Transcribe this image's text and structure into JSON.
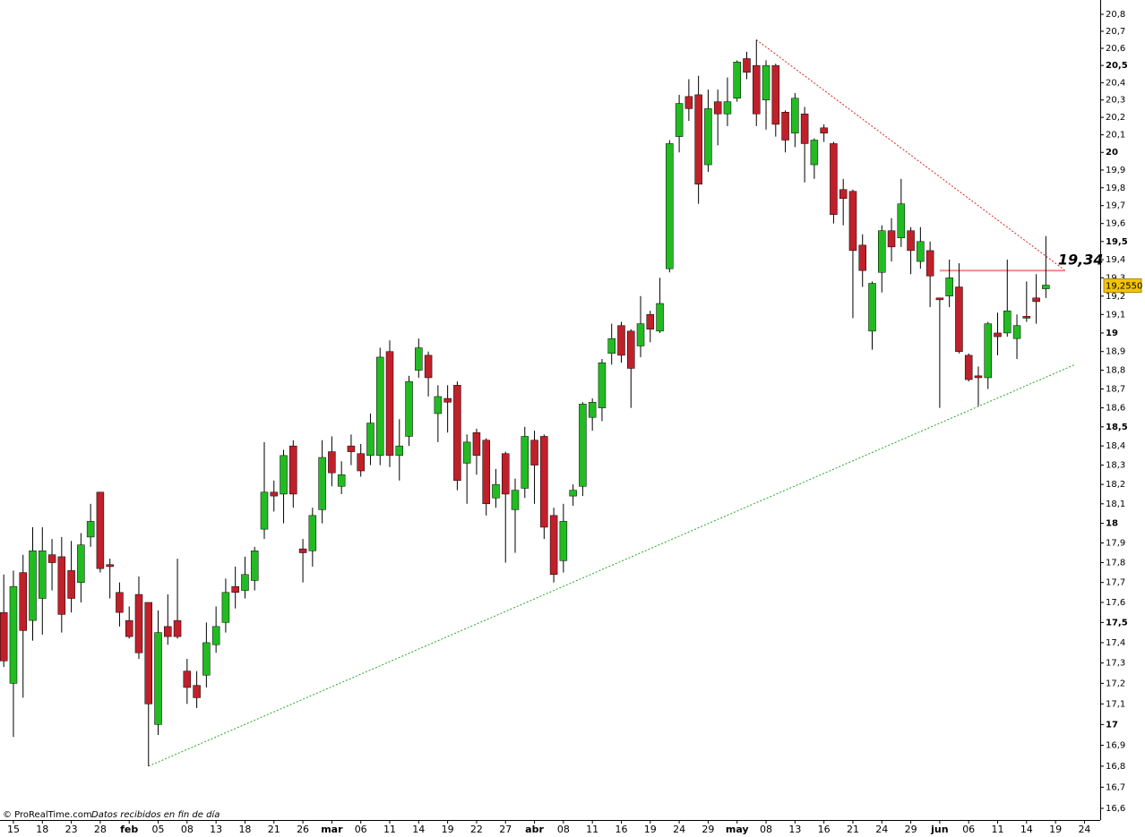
{
  "chart_data": {
    "type": "candlestick",
    "log_scale": true,
    "ylim": [
      16.6,
      20.8
    ],
    "yticks": [
      {
        "value": 16.6,
        "label": "16,6"
      },
      {
        "value": 16.7,
        "label": "16,7"
      },
      {
        "value": 16.8,
        "label": "16,8"
      },
      {
        "value": 16.9,
        "label": "16,9"
      },
      {
        "value": 17,
        "label": "17"
      },
      {
        "value": 17.1,
        "label": "17,1"
      },
      {
        "value": 17.2,
        "label": "17,2"
      },
      {
        "value": 17.3,
        "label": "17,3"
      },
      {
        "value": 17.4,
        "label": "17,4"
      },
      {
        "value": 17.5,
        "label": "17,5"
      },
      {
        "value": 17.6,
        "label": "17,6"
      },
      {
        "value": 17.7,
        "label": "17,7"
      },
      {
        "value": 17.8,
        "label": "17,8"
      },
      {
        "value": 17.9,
        "label": "17,9"
      },
      {
        "value": 18,
        "label": "18"
      },
      {
        "value": 18.1,
        "label": "18,1"
      },
      {
        "value": 18.2,
        "label": "18,2"
      },
      {
        "value": 18.3,
        "label": "18,3"
      },
      {
        "value": 18.4,
        "label": "18,4"
      },
      {
        "value": 18.5,
        "label": "18,5"
      },
      {
        "value": 18.6,
        "label": "18,6"
      },
      {
        "value": 18.7,
        "label": "18,7"
      },
      {
        "value": 18.8,
        "label": "18,8"
      },
      {
        "value": 18.9,
        "label": "18,9"
      },
      {
        "value": 19,
        "label": "19"
      },
      {
        "value": 19.1,
        "label": "19,1"
      },
      {
        "value": 19.2,
        "label": "19,2"
      },
      {
        "value": 19.3,
        "label": "19,3"
      },
      {
        "value": 19.4,
        "label": "19,4"
      },
      {
        "value": 19.5,
        "label": "19,5"
      },
      {
        "value": 19.6,
        "label": "19,6"
      },
      {
        "value": 19.7,
        "label": "19,7"
      },
      {
        "value": 19.8,
        "label": "19,8"
      },
      {
        "value": 19.9,
        "label": "19,9"
      },
      {
        "value": 20,
        "label": "20"
      },
      {
        "value": 20.1,
        "label": "20,1"
      },
      {
        "value": 20.2,
        "label": "20,2"
      },
      {
        "value": 20.3,
        "label": "20,3"
      },
      {
        "value": 20.4,
        "label": "20,4"
      },
      {
        "value": 20.5,
        "label": "20,5"
      },
      {
        "value": 20.6,
        "label": "20,6"
      },
      {
        "value": 20.7,
        "label": "20,7"
      },
      {
        "value": 20.8,
        "label": "20,8"
      }
    ],
    "categories": [
      null,
      "15",
      null,
      null,
      "18",
      null,
      null,
      "23",
      null,
      null,
      "28",
      null,
      null,
      "feb",
      null,
      null,
      "05",
      null,
      null,
      "08",
      null,
      null,
      "13",
      null,
      null,
      "18",
      null,
      null,
      "21",
      null,
      null,
      "26",
      null,
      null,
      "mar",
      null,
      null,
      "06",
      null,
      null,
      "11",
      null,
      null,
      "14",
      null,
      null,
      "19",
      null,
      null,
      "22",
      null,
      null,
      "27",
      null,
      null,
      "abr",
      null,
      null,
      "08",
      null,
      null,
      "11",
      null,
      null,
      "16",
      null,
      null,
      "19",
      null,
      null,
      "24",
      null,
      null,
      "29",
      null,
      null,
      "may",
      null,
      null,
      "08",
      null,
      null,
      "13",
      null,
      null,
      "16",
      null,
      null,
      "21",
      null,
      null,
      "24",
      null,
      null,
      "29",
      null,
      null,
      "jun",
      null,
      null,
      "06",
      null,
      null,
      "11",
      null,
      null,
      "14",
      null,
      null,
      "19",
      null,
      null,
      "24"
    ],
    "up_color": "#22bb22",
    "down_color": "#c0202a",
    "open": [
      17.55,
      17.2,
      17.75,
      17.51,
      17.62,
      17.84,
      17.83,
      17.76,
      17.7,
      17.93,
      18.16,
      17.79,
      17.65,
      17.51,
      17.64,
      17.6,
      17.0,
      17.48,
      17.51,
      17.26,
      17.19,
      17.24,
      17.39,
      17.5,
      17.68,
      17.66,
      17.71,
      17.97,
      18.16,
      18.15,
      18.4,
      17.87,
      17.86,
      18.07,
      18.37,
      18.19,
      18.4,
      18.36,
      18.35,
      18.35,
      18.9,
      18.35,
      18.45,
      18.8,
      18.88,
      18.57,
      18.65,
      18.72,
      18.31,
      18.47,
      18.43,
      18.13,
      18.36,
      18.07,
      18.18,
      18.43,
      18.45,
      18.04,
      17.81,
      18.14,
      18.19,
      18.55,
      18.6,
      18.89,
      19.04,
      19.01,
      18.93,
      19.1,
      19.01,
      19.35,
      20.09,
      20.32,
      20.33,
      19.93,
      20.29,
      20.22,
      20.31,
      20.54,
      20.5,
      20.3,
      20.5,
      20.23,
      20.11,
      20.22,
      19.93,
      20.14,
      20.05,
      19.79,
      19.78,
      19.48,
      19.01,
      19.33,
      19.56,
      19.52,
      19.56,
      19.39,
      19.45,
      19.19,
      19.2,
      19.25,
      18.88,
      18.77,
      18.76,
      19.0,
      19.0,
      18.97,
      19.09,
      19.19,
      19.24,
      null,
      null,
      null,
      null
    ],
    "high": [
      17.74,
      17.76,
      17.84,
      17.98,
      17.98,
      17.92,
      17.93,
      17.91,
      17.95,
      18.1,
      18.16,
      17.82,
      17.7,
      17.58,
      17.73,
      17.6,
      17.56,
      17.64,
      17.82,
      17.32,
      17.26,
      17.5,
      17.58,
      17.72,
      17.78,
      17.83,
      17.88,
      18.42,
      18.22,
      18.38,
      18.43,
      17.92,
      18.08,
      18.43,
      18.45,
      18.32,
      18.46,
      18.41,
      18.57,
      18.92,
      18.96,
      18.54,
      18.77,
      18.97,
      18.9,
      18.72,
      18.72,
      18.74,
      18.46,
      18.49,
      18.44,
      18.28,
      18.37,
      18.23,
      18.5,
      18.48,
      18.46,
      18.08,
      18.1,
      18.2,
      18.63,
      18.65,
      18.86,
      19.05,
      19.06,
      19.02,
      19.2,
      19.12,
      19.3,
      20.07,
      20.33,
      20.42,
      20.44,
      20.36,
      20.36,
      20.43,
      20.53,
      20.58,
      20.65,
      20.53,
      20.51,
      20.24,
      20.34,
      20.26,
      20.08,
      20.16,
      20.06,
      19.85,
      19.79,
      19.54,
      19.28,
      19.59,
      19.63,
      19.85,
      19.58,
      19.58,
      19.5,
      19.19,
      19.4,
      19.38,
      18.89,
      18.82,
      19.06,
      19.11,
      19.4,
      19.1,
      19.28,
      19.32,
      19.53,
      null,
      null,
      null,
      null
    ],
    "low": [
      17.28,
      16.94,
      17.13,
      17.41,
      17.44,
      17.66,
      17.45,
      17.55,
      17.6,
      17.88,
      17.75,
      17.62,
      17.48,
      17.42,
      17.32,
      16.8,
      16.95,
      17.39,
      17.42,
      17.1,
      17.08,
      17.18,
      17.35,
      17.45,
      17.57,
      17.62,
      17.66,
      17.92,
      18.06,
      18.0,
      18.08,
      17.7,
      17.78,
      18.0,
      18.19,
      18.15,
      18.3,
      18.24,
      18.3,
      18.3,
      18.29,
      18.22,
      18.4,
      18.76,
      18.66,
      18.42,
      18.47,
      18.17,
      18.1,
      18.25,
      18.04,
      18.08,
      17.8,
      17.85,
      18.13,
      18.1,
      17.92,
      17.7,
      17.75,
      18.09,
      18.14,
      18.48,
      18.53,
      18.83,
      18.84,
      18.6,
      18.87,
      18.95,
      19.0,
      19.33,
      20.0,
      20.18,
      19.71,
      19.89,
      20.04,
      20.15,
      20.29,
      20.42,
      20.15,
      20.13,
      20.09,
      20.0,
      20.03,
      19.83,
      19.85,
      20.06,
      19.6,
      19.59,
      19.08,
      19.25,
      18.91,
      19.22,
      19.39,
      19.47,
      19.32,
      19.35,
      19.14,
      18.6,
      19.14,
      18.89,
      18.74,
      18.61,
      18.7,
      18.88,
      18.98,
      18.86,
      19.06,
      19.05,
      19.19,
      null,
      null,
      null,
      null
    ],
    "close": [
      17.31,
      17.68,
      17.46,
      17.86,
      17.86,
      17.8,
      17.54,
      17.62,
      17.89,
      18.01,
      17.77,
      17.78,
      17.55,
      17.43,
      17.35,
      17.1,
      17.45,
      17.43,
      17.43,
      17.18,
      17.13,
      17.4,
      17.48,
      17.65,
      17.65,
      17.74,
      17.86,
      18.16,
      18.14,
      18.35,
      18.15,
      17.85,
      18.04,
      18.34,
      18.26,
      18.25,
      18.37,
      18.27,
      18.52,
      18.87,
      18.35,
      18.4,
      18.74,
      18.92,
      18.76,
      18.66,
      18.63,
      18.22,
      18.42,
      18.35,
      18.1,
      18.2,
      18.15,
      18.17,
      18.45,
      18.3,
      17.98,
      17.74,
      18.01,
      18.17,
      18.62,
      18.63,
      18.84,
      18.97,
      18.88,
      18.81,
      19.05,
      19.02,
      19.16,
      20.05,
      20.28,
      20.25,
      19.82,
      20.25,
      20.22,
      20.29,
      20.52,
      20.46,
      20.22,
      20.5,
      20.16,
      20.07,
      20.31,
      20.05,
      20.07,
      20.11,
      19.65,
      19.74,
      19.45,
      19.34,
      19.27,
      19.56,
      19.47,
      19.71,
      19.45,
      19.5,
      19.31,
      19.18,
      19.3,
      18.9,
      18.75,
      18.76,
      19.05,
      18.98,
      19.12,
      19.04,
      19.08,
      19.17,
      19.26,
      null,
      null,
      null,
      null
    ],
    "trendlines": [
      {
        "color": "#22aa22",
        "from": [
          15,
          16.8
        ],
        "to": [
          111,
          18.83
        ]
      },
      {
        "color": "#dd2222",
        "from": [
          78,
          20.65
        ],
        "to": [
          110,
          19.34
        ]
      }
    ],
    "level": {
      "value": 19.34,
      "label": "19,34",
      "color": "#f08a8a",
      "from": 97,
      "to": 110
    },
    "last_price": {
      "value": 19.255,
      "label": "19,2550"
    },
    "copyright": "© ProRealTime.com",
    "note": "Datos recibidos en fin de día"
  }
}
